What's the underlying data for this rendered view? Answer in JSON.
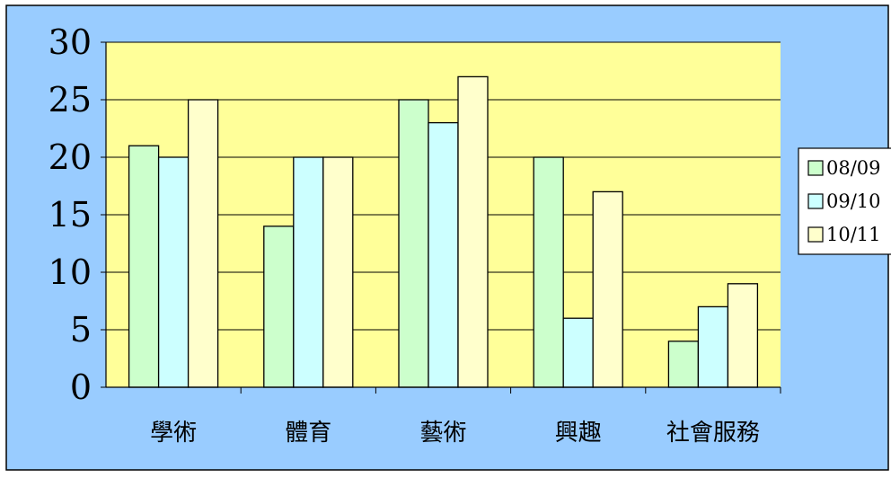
{
  "chart_data": {
    "type": "bar",
    "categories": [
      "學術",
      "體育",
      "藝術",
      "興趣",
      "社會服務"
    ],
    "series": [
      {
        "name": "08/09",
        "color": "#ccffcc",
        "values": [
          21,
          14,
          25,
          20,
          4
        ]
      },
      {
        "name": "09/10",
        "color": "#ccffff",
        "values": [
          20,
          20,
          23,
          6,
          7
        ]
      },
      {
        "name": "10/11",
        "color": "#ffffcc",
        "values": [
          25,
          20,
          27,
          17,
          9
        ]
      }
    ],
    "ylim": [
      0,
      30
    ],
    "yticks": [
      0,
      5,
      10,
      15,
      20,
      25,
      30
    ],
    "grid": true,
    "legend_position": "right",
    "colors": {
      "background": "#99ccff",
      "plot_area": "#ffff99",
      "gridline": "#000000",
      "bar_border": "#000000"
    }
  }
}
